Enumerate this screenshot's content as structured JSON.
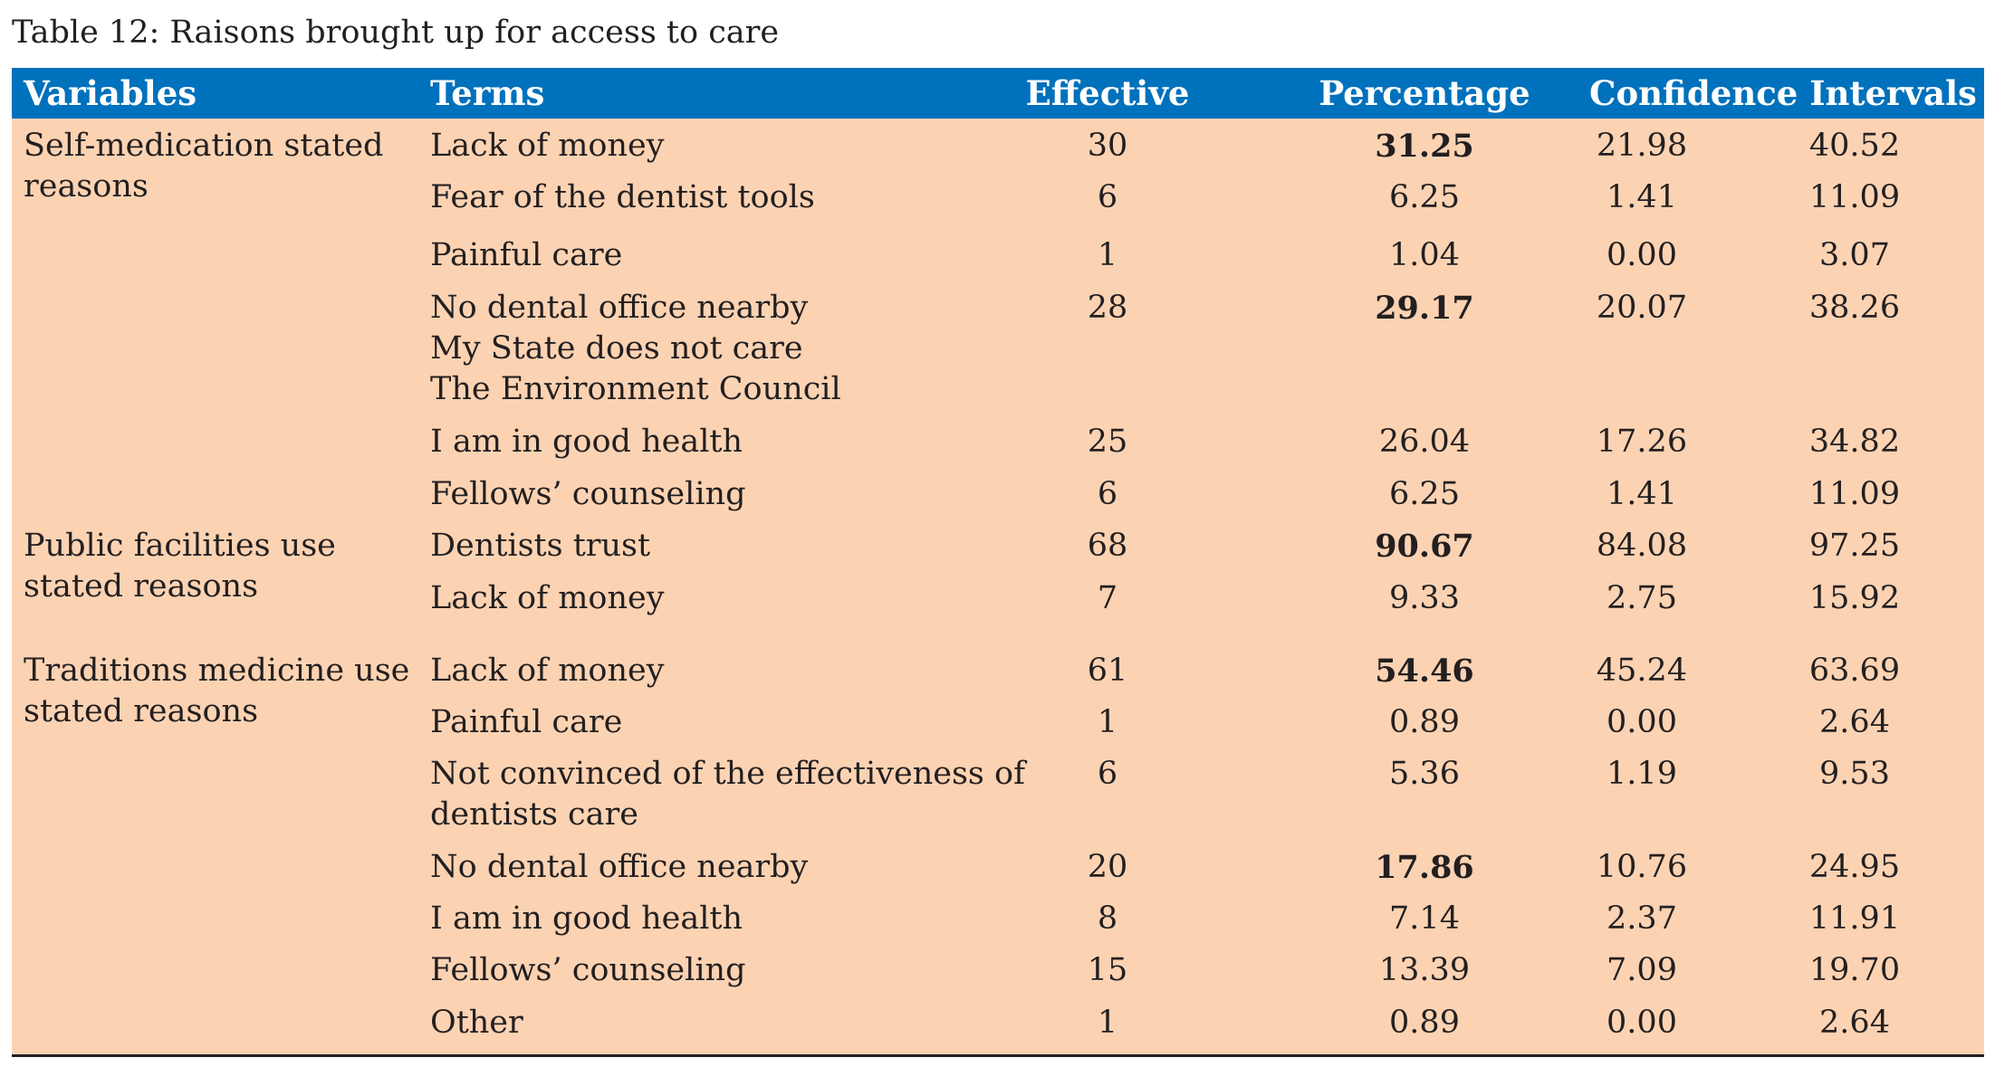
{
  "caption": "Table 12: Raisons brought up for access to care",
  "colors": {
    "header_bg": "#0071bc",
    "header_text": "#ffffff",
    "body_bg": "#fbd3b3",
    "text": "#231f20"
  },
  "headers": {
    "variables": "Variables",
    "terms": "Terms",
    "effective": "Effective",
    "percentage": "Percentage",
    "confidence_intervals": "Confidence Intervals"
  },
  "groups": [
    {
      "label": "Self-medication stated reasons"
    },
    {
      "label": "Public facilities use stated reasons"
    },
    {
      "label": "Traditions medicine use stated reasons"
    }
  ],
  "rows": [
    {
      "terms": [
        "Lack of money"
      ],
      "effective": "30",
      "percentage": "31.25",
      "ci_low": "21.98",
      "ci_high": "40.52"
    },
    {
      "terms": [
        "Fear of the dentist tools"
      ],
      "effective": "6",
      "percentage": "6.25",
      "ci_low": "1.41",
      "ci_high": "11.09"
    },
    {
      "terms": [
        "Painful care"
      ],
      "effective": "1",
      "percentage": "1.04",
      "ci_low": "0.00",
      "ci_high": "3.07"
    },
    {
      "terms": [
        "No dental office nearby",
        "My State does not care",
        "The Environment Council"
      ],
      "effective": "28",
      "percentage": "29.17",
      "ci_low": "20.07",
      "ci_high": "38.26"
    },
    {
      "terms": [
        "I am in good health"
      ],
      "effective": "25",
      "percentage": "26.04",
      "ci_low": "17.26",
      "ci_high": "34.82"
    },
    {
      "terms": [
        "Fellows’ counseling"
      ],
      "effective": "6",
      "percentage": "6.25",
      "ci_low": "1.41",
      "ci_high": "11.09"
    },
    {
      "terms": [
        "Dentists trust"
      ],
      "effective": "68",
      "percentage": "90.67",
      "ci_low": "84.08",
      "ci_high": "97.25"
    },
    {
      "terms": [
        "Lack of money"
      ],
      "effective": "7",
      "percentage": "9.33",
      "ci_low": "2.75",
      "ci_high": "15.92"
    },
    {
      "terms": [
        "Lack of money"
      ],
      "effective": "61",
      "percentage": "54.46",
      "ci_low": "45.24",
      "ci_high": "63.69"
    },
    {
      "terms": [
        "Painful care"
      ],
      "effective": "1",
      "percentage": "0.89",
      "ci_low": "0.00",
      "ci_high": "2.64"
    },
    {
      "terms": [
        "Not convinced of the effectiveness of",
        "dentists care"
      ],
      "effective": "6",
      "percentage": "5.36",
      "ci_low": "1.19",
      "ci_high": "9.53"
    },
    {
      "terms": [
        "No dental office nearby"
      ],
      "effective": "20",
      "percentage": "17.86",
      "ci_low": "10.76",
      "ci_high": "24.95"
    },
    {
      "terms": [
        "I am in good health"
      ],
      "effective": "8",
      "percentage": "7.14",
      "ci_low": "2.37",
      "ci_high": "11.91"
    },
    {
      "terms": [
        "Fellows’ counseling"
      ],
      "effective": "15",
      "percentage": "13.39",
      "ci_low": "7.09",
      "ci_high": "19.70"
    },
    {
      "terms": [
        "Other"
      ],
      "effective": "1",
      "percentage": "0.89",
      "ci_low": "0.00",
      "ci_high": "2.64"
    }
  ]
}
